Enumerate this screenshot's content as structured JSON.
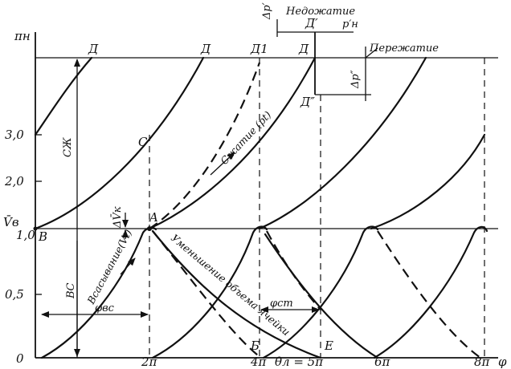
{
  "axes": {
    "y_axis_label": "πн",
    "x_axis_label": "φ",
    "y_ticks": [
      "3,0",
      "2,0",
      "1,0",
      "0,5"
    ],
    "y_tick_vb": "V̄в",
    "origin": "0",
    "x_ticks": [
      "2π",
      "4π",
      "θл = 5π",
      "6π",
      "8π"
    ]
  },
  "labels": {
    "nedozhatie": "Недожатие",
    "perezhatie": "Пережатие",
    "p_n_prime": "p′н",
    "delta_p_prime": "Δp′",
    "delta_p_double": "Δp″",
    "d_top_1": "Д",
    "d_top_2": "Д",
    "d_top_3": "Д1",
    "d_top_4": "Д",
    "d_prime": "Д′",
    "d_double": "Д″",
    "point_c": "C",
    "point_a": "A",
    "point_b_left": "В",
    "point_b_bottom": "Б",
    "point_e": "E",
    "cz": "СЖ",
    "bc": "ВС",
    "delta_vk": "ΔV̄к",
    "phi_vs": "φвс",
    "phi_st": "φст",
    "szhatie": "Сжатие (pt)",
    "vsasyvanie": "Всасывание(Vt)",
    "umenshenie": "Уменьшение объема ячейки"
  },
  "colors": {
    "ink": "#111111",
    "background": "#ffffff"
  }
}
